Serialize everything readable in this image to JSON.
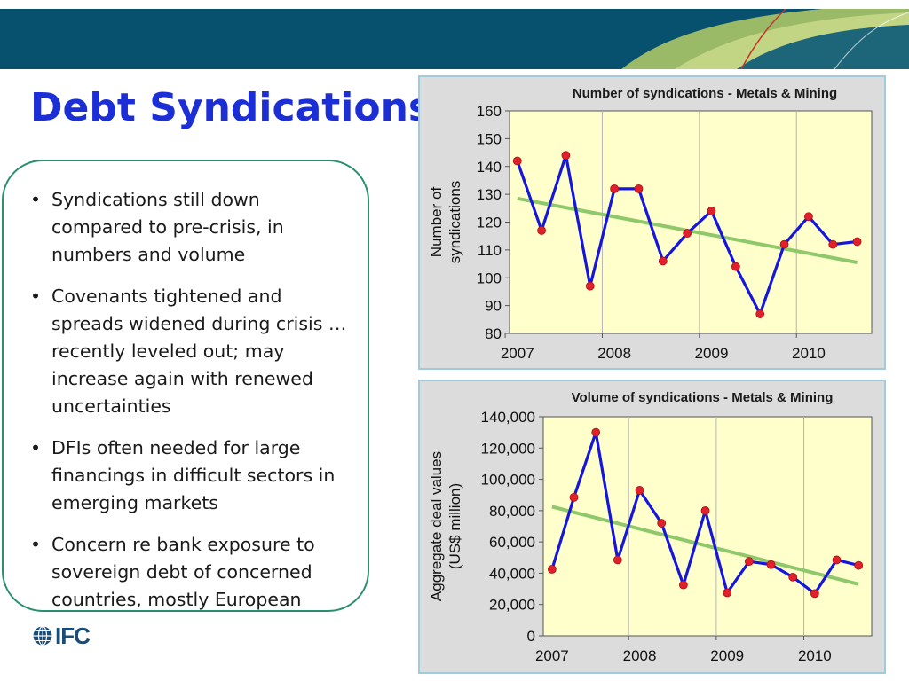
{
  "slide": {
    "title": "Debt Syndications",
    "bullets": [
      "Syndications still down compared to pre-crisis, in numbers and volume",
      "Covenants tightened and spreads widened during crisis … recently leveled out; may increase again with renewed uncertainties",
      "DFIs often needed for large financings in difficult sectors in emerging markets",
      "Concern re bank exposure to sovereign debt of concerned countries, mostly European"
    ],
    "logo_text": "IFC"
  },
  "colors": {
    "banner": "#07506e",
    "title": "#1c2fd6",
    "series_line": "#1515e0",
    "marker": "#e0202a",
    "trend": "#8fc86a",
    "plot_bg": "#ffffcc",
    "box_border": "#2a8f6f"
  },
  "chart_data": [
    {
      "type": "line",
      "title": "Number of syndications - Metals & Mining",
      "xlabel": "",
      "ylabel": "Number of syndications",
      "x_ticks": [
        "2007",
        "2008",
        "2009",
        "2010"
      ],
      "x": [
        2007.0,
        2007.25,
        2007.5,
        2007.75,
        2008.0,
        2008.25,
        2008.5,
        2008.75,
        2009.0,
        2009.25,
        2009.5,
        2009.75,
        2010.0,
        2010.25,
        2010.5
      ],
      "xlim": [
        2006.92,
        2010.65
      ],
      "ylim": [
        80,
        160
      ],
      "y_ticks": [
        80,
        90,
        100,
        110,
        120,
        130,
        140,
        150,
        160
      ],
      "y_tick_labels": [
        "80",
        "90",
        "100",
        "110",
        "120",
        "130",
        "140",
        "150",
        "160"
      ],
      "series": [
        {
          "values": [
            142,
            117,
            144,
            97,
            132,
            132,
            106,
            116,
            124,
            104,
            87,
            112,
            122,
            112,
            113
          ]
        }
      ],
      "trendline": {
        "start": 128.5,
        "end": 105.5
      },
      "grid": "vertical",
      "legend": "none"
    },
    {
      "type": "line",
      "title": "Volume of syndications - Metals & Mining",
      "xlabel": "",
      "ylabel": "Aggregate deal values (US$ million)",
      "x_ticks": [
        "2007",
        "2008",
        "2009",
        "2010"
      ],
      "x": [
        2007.0,
        2007.25,
        2007.5,
        2007.75,
        2008.0,
        2008.25,
        2008.5,
        2008.75,
        2009.0,
        2009.25,
        2009.5,
        2009.75,
        2010.0,
        2010.25,
        2010.5
      ],
      "xlim": [
        2006.9,
        2010.65
      ],
      "ylim": [
        0,
        140000
      ],
      "y_ticks": [
        0,
        20000,
        40000,
        60000,
        80000,
        100000,
        120000,
        140000
      ],
      "y_tick_labels": [
        "0",
        "20,000",
        "40,000",
        "60,000",
        "80,000",
        "100,000",
        "120,000",
        "140,000"
      ],
      "series": [
        {
          "values": [
            42500,
            88500,
            130000,
            48500,
            93000,
            72000,
            32500,
            80000,
            27500,
            47500,
            45500,
            37500,
            27000,
            48500,
            45000
          ]
        }
      ],
      "trendline": {
        "start": 82500,
        "end": 33000
      },
      "grid": "vertical",
      "legend": "none"
    }
  ]
}
